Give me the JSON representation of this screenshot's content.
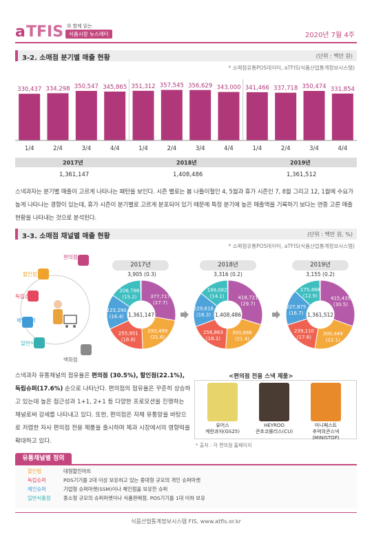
{
  "header": {
    "logo_a": "a",
    "logo_t": "TFIS",
    "tagline_top": "와 함께 읽는",
    "tagline_pill": "식품시장 뉴스레터",
    "date": "2020년 7월 4주"
  },
  "section1": {
    "title": "3-2. 소매점 분기별 매출 현황",
    "unit": "(단위 : 백만 원)",
    "source": "* 소매점유통POS데이터, aTFIS(식품산업통계정보시스템)"
  },
  "colors": {
    "accent": "#c4467f",
    "bar": "#b0387a"
  },
  "chart_data": {
    "type": "bar",
    "categories": [
      "1/4",
      "2/4",
      "3/4",
      "4/4",
      "1/4",
      "2/4",
      "3/4",
      "4/4",
      "1/4",
      "2/4",
      "3/4",
      "4/4"
    ],
    "data_labels": [
      "330,437",
      "334,298",
      "350,547",
      "345,865",
      "351,312",
      "357,545",
      "356,629",
      "343,000",
      "341,466",
      "337,718",
      "350,474",
      "331,854"
    ],
    "series": [
      {
        "values": [
          330437,
          334298,
          350547,
          345865,
          351312,
          357545,
          356629,
          343000,
          341466,
          337718,
          350474,
          331854
        ]
      }
    ],
    "groups": [
      {
        "year": "2017년",
        "total": "1,361,147"
      },
      {
        "year": "2018년",
        "total": "1,408,486"
      },
      {
        "year": "2019년",
        "total": "1,361,512"
      }
    ],
    "ylim": [
      0,
      380000
    ]
  },
  "para1": "스낵과자는 분기별 매출이 고르게 나타나는 패턴을 보인다. 시즌 별로는 봄 나들이철인 4, 5월과 휴가 시즌인 7, 8월 그리고 12, 1월에 수요가 높게 나타나는 경향이 있는데, 휴가 시즌이 분기별로 고르게 분포되어 있기 때문에 특정 분기에 높은 매출액을 기록하기 보다는 연중 고른 매출 현황을 나타내는 것으로 분석된다.",
  "section2": {
    "title": "3-3. 소매점 채널별 매출 현황",
    "unit": "(단위 : 백만 원, %)",
    "source": "* 소매점유통POS데이터, aTFIS(식품산업통계정보시스템)"
  },
  "channels": {
    "convenience": "편의점",
    "discount": "할인점",
    "independent": "독립슈퍼",
    "chain": "체인슈퍼",
    "general": "일반식품점",
    "department": "백화점"
  },
  "donuts": [
    {
      "year": "2017년",
      "top": "3,905 (0.3)",
      "center": "1,361,147",
      "segments": [
        {
          "value": 377717,
          "label": "377,717",
          "pct": "(27.7)",
          "color": "#b55aa8"
        },
        {
          "value": 293499,
          "label": "293,499",
          "pct": "(21.6)",
          "color": "#f4a93d"
        },
        {
          "value": 255951,
          "label": "255,951",
          "pct": "(18.8)",
          "color": "#ef6150"
        },
        {
          "value": 223290,
          "label": "223,290",
          "pct": "(16.4)",
          "color": "#4fa3db"
        },
        {
          "value": 206786,
          "label": "206,786",
          "pct": "(15.2)",
          "color": "#3fbec0"
        },
        {
          "value": 3905,
          "label": "",
          "pct": "",
          "color": "#9a9a9a"
        }
      ]
    },
    {
      "year": "2018년",
      "top": "3,316 (0.2)",
      "center": "1,408,486",
      "segments": [
        {
          "value": 418721,
          "label": "418,721",
          "pct": "(29.7)",
          "color": "#b55aa8"
        },
        {
          "value": 300888,
          "label": "300,888",
          "pct": "(21.4)",
          "color": "#f4a93d"
        },
        {
          "value": 256863,
          "label": "256,863",
          "pct": "(18.2)",
          "color": "#ef6150"
        },
        {
          "value": 229616,
          "label": "229,616",
          "pct": "(16.3)",
          "color": "#4fa3db"
        },
        {
          "value": 199082,
          "label": "199,082",
          "pct": "(14.1)",
          "color": "#3fbec0"
        },
        {
          "value": 3316,
          "label": "",
          "pct": "",
          "color": "#9a9a9a"
        }
      ]
    },
    {
      "year": "2019년",
      "top": "3,155 (0.2)",
      "center": "1,361,512",
      "segments": [
        {
          "value": 415435,
          "label": "415,435",
          "pct": "(30.5)",
          "color": "#b55aa8"
        },
        {
          "value": 300449,
          "label": "300,449",
          "pct": "(22.1)",
          "color": "#f4a93d"
        },
        {
          "value": 239110,
          "label": "239,110",
          "pct": "(17.6)",
          "color": "#ef6150"
        },
        {
          "value": 227875,
          "label": "227,875",
          "pct": "(16.7)",
          "color": "#4fa3db"
        },
        {
          "value": 175488,
          "label": "175,488",
          "pct": "(12.9)",
          "color": "#3fbec0"
        },
        {
          "value": 3155,
          "label": "",
          "pct": "",
          "color": "#9a9a9a"
        }
      ]
    }
  ],
  "body": {
    "lead": "스낵과자 유통채널의 점유율은",
    "b1": "편의점 (30.5%),",
    "b2": "할인점(22.1%),",
    "b3": "독립슈퍼(17.6%)",
    "tail": "순으로 나타난다. 편의점의 점유율은 꾸준히 상승하고 있는데 높은 접근성과 1+1, 2+1 등 다양한 프로모션을 진행하는 채널로써 강세를 나타내고 있다. 또한, 편의점은 자체 유통망을 바탕으로 저렴한 자사 편의점 전용 제품을 출시하며 제과 시장에서의 영향력을 확대하고 있다."
  },
  "products": {
    "title": "<편의점 전용 스낵 제품>",
    "items": [
      {
        "line1": "유어스",
        "line2": "계란과자(GS25)",
        "color": "#e7d46a"
      },
      {
        "line1": "HEYROO",
        "line2": "콘초코롤리스(CU)",
        "color": "#4a3b33"
      },
      {
        "line1": "미니패스트",
        "line2": "추억의콘스낵(MINISTOP)",
        "color": "#e98a2a"
      }
    ],
    "source": "* 출처 : 각 편의점 홈페이지"
  },
  "definitions": {
    "title": "유통채널별 정의",
    "rows": [
      {
        "term": "할인점",
        "desc": "대형할인마트",
        "color": "#f0a32c"
      },
      {
        "term": "독립슈퍼",
        "desc": "POS기기를 2대 이상 보유하고 있는 중대형 규모의 개인 슈퍼마켓",
        "color": "#e4475f"
      },
      {
        "term": "체인슈퍼",
        "desc": "기업형 슈퍼마켓(SSM)이나 체인점을 보유한 슈퍼",
        "color": "#3f9ad6"
      },
      {
        "term": "일반식품점",
        "desc": "중소형 규모의 슈퍼마켓이나 식품판매점. POS기기를 1대 이하 보유",
        "color": "#38b0b2"
      }
    ]
  },
  "footer": "식품산업통계정보시스템 FIS, www.atfis.or.kr"
}
